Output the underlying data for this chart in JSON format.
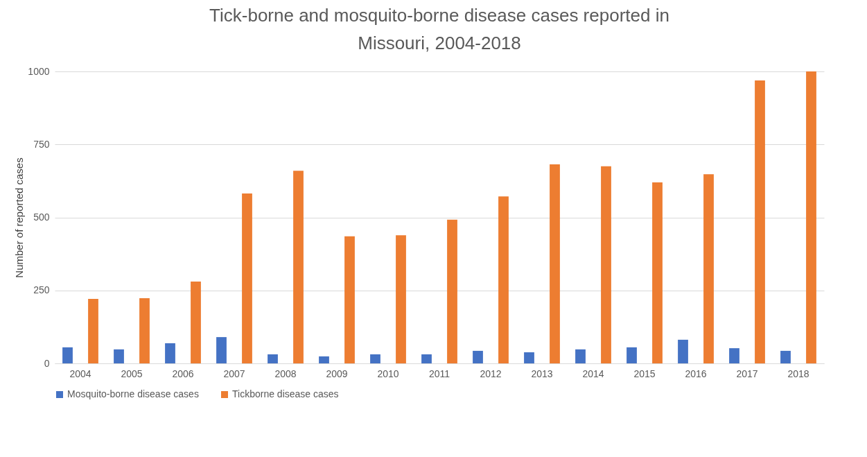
{
  "chart_data": {
    "type": "bar",
    "title": [
      "Tick-borne and mosquito-borne disease cases reported in",
      "Missouri, 2004-2018"
    ],
    "ylabel": "Number of reported cases",
    "categories": [
      "2004",
      "2005",
      "2006",
      "2007",
      "2008",
      "2009",
      "2010",
      "2011",
      "2012",
      "2013",
      "2014",
      "2015",
      "2016",
      "2017",
      "2018"
    ],
    "series": [
      {
        "name": "Mosquito-borne disease cases",
        "color": "#4472c4",
        "values": [
          55,
          48,
          69,
          90,
          31,
          24,
          31,
          31,
          43,
          38,
          48,
          55,
          81,
          52,
          43
        ]
      },
      {
        "name": "Tickborne disease cases",
        "color": "#ed7d31",
        "values": [
          221,
          223,
          280,
          582,
          660,
          435,
          439,
          492,
          572,
          682,
          675,
          620,
          648,
          969,
          1000
        ]
      }
    ],
    "ylim": [
      0,
      1000
    ],
    "yticks": [
      0,
      250,
      500,
      750,
      1000
    ],
    "grid": "y",
    "legend": "bottom"
  }
}
